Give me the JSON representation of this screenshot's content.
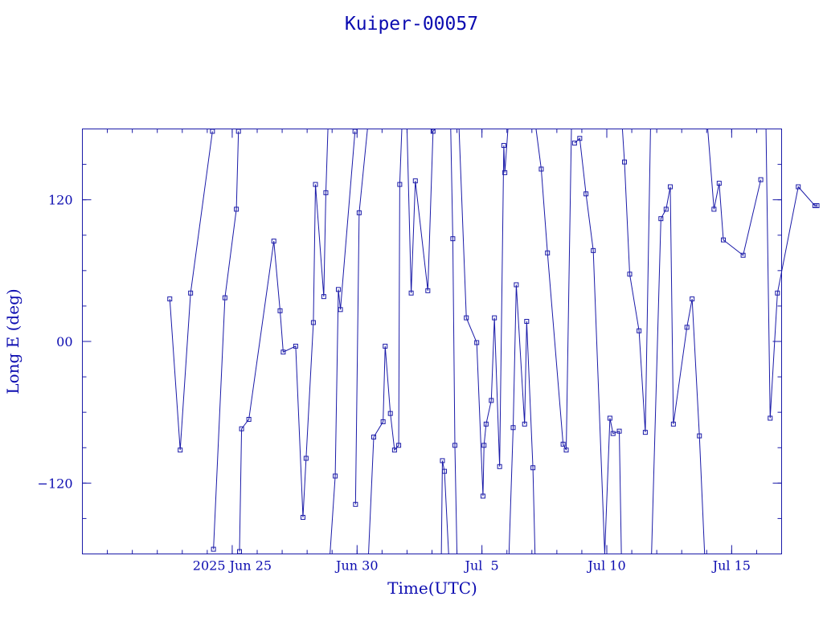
{
  "colors": {
    "ink": "#0b0bb0",
    "line": "#1a1aa8",
    "background": "#ffffff"
  },
  "chart_data": {
    "type": "line",
    "title": "Kuiper-00057",
    "xlabel": "Time(UTC)",
    "ylabel": "Long E (deg)",
    "x_is_date": true,
    "xlim": [
      "2025-06-19",
      "2025-07-17"
    ],
    "ylim": [
      -180,
      180
    ],
    "x_ticks": [
      {
        "date": "2025-06-25",
        "label": "2025 Jun 25"
      },
      {
        "date": "2025-06-30",
        "label": "Jun 30"
      },
      {
        "date": "2025-07-05",
        "label": "Jul  5"
      },
      {
        "date": "2025-07-10",
        "label": "Jul 10"
      },
      {
        "date": "2025-07-15",
        "label": "Jul 15"
      }
    ],
    "y_ticks": [
      {
        "value": -120,
        "label": "−120"
      },
      {
        "value": 0,
        "label": "00"
      },
      {
        "value": 120,
        "label": "120"
      }
    ],
    "grid": false,
    "marker": "open-square",
    "series": [
      {
        "points": [
          [
            "2025-06-22T12:00",
            36
          ],
          [
            "2025-06-22T22:00",
            -92
          ],
          [
            "2025-06-23T08:00",
            41
          ],
          [
            "2025-06-24T05:00",
            178
          ],
          [
            "2025-06-24T06:00",
            -176
          ],
          [
            "2025-06-24T17:00",
            37
          ],
          [
            "2025-06-25T04:00",
            112
          ],
          [
            "2025-06-25T06:00",
            178
          ],
          [
            "2025-06-25T07:00",
            -178
          ],
          [
            "2025-06-25T09:00",
            -74
          ],
          [
            "2025-06-25T16:00",
            -66
          ],
          [
            "2025-06-26T16:00",
            85
          ],
          [
            "2025-06-26T22:00",
            26
          ],
          [
            "2025-06-27T01:00",
            -9
          ],
          [
            "2025-06-27T13:00",
            -4
          ],
          [
            "2025-06-27T20:00",
            -149
          ],
          [
            "2025-06-27T23:00",
            -99
          ],
          [
            "2025-06-28T06:00",
            16
          ],
          [
            "2025-06-28T08:00",
            133
          ],
          [
            "2025-06-28T16:00",
            38
          ],
          [
            "2025-06-28T18:00",
            126
          ],
          [
            "2025-06-28T20:00",
            180
          ],
          [
            "2025-06-28T22:00",
            -180
          ],
          [
            "2025-06-29T03:00",
            -114
          ],
          [
            "2025-06-29T06:00",
            44
          ],
          [
            "2025-06-29T08:00",
            27
          ],
          [
            "2025-06-29T22:00",
            178
          ],
          [
            "2025-06-29T22:30",
            -138
          ],
          [
            "2025-06-30T02:00",
            109
          ],
          [
            "2025-06-30T10:00",
            180
          ],
          [
            "2025-06-30T11:00",
            -180
          ],
          [
            "2025-06-30T16:00",
            -81
          ],
          [
            "2025-07-01T01:00",
            -68
          ],
          [
            "2025-07-01T03:00",
            -4
          ],
          [
            "2025-07-01T08:00",
            -61
          ],
          [
            "2025-07-01T12:00",
            -92
          ],
          [
            "2025-07-01T16:00",
            -88
          ],
          [
            "2025-07-01T17:00",
            133
          ],
          [
            "2025-07-01T19:00",
            180
          ],
          [
            "2025-07-02T00:00",
            180
          ],
          [
            "2025-07-02T04:00",
            41
          ],
          [
            "2025-07-02T08:00",
            136
          ],
          [
            "2025-07-02T20:00",
            43
          ],
          [
            "2025-07-03T01:00",
            178
          ],
          [
            "2025-07-03T03:00",
            180
          ],
          [
            "2025-07-03T09:00",
            -180
          ],
          [
            "2025-07-03T10:00",
            -101
          ],
          [
            "2025-07-03T12:00",
            -110
          ],
          [
            "2025-07-03T16:00",
            -180
          ],
          [
            "2025-07-03T18:00",
            180
          ],
          [
            "2025-07-03T20:00",
            87
          ],
          [
            "2025-07-03T22:00",
            -88
          ],
          [
            "2025-07-04T00:00",
            -180
          ],
          [
            "2025-07-04T02:00",
            180
          ],
          [
            "2025-07-04T09:00",
            20
          ],
          [
            "2025-07-04T19:00",
            -1
          ],
          [
            "2025-07-05T01:00",
            -131
          ],
          [
            "2025-07-05T02:00",
            -88
          ],
          [
            "2025-07-05T04:00",
            -70
          ],
          [
            "2025-07-05T09:00",
            -50
          ],
          [
            "2025-07-05T12:00",
            20
          ],
          [
            "2025-07-05T17:00",
            -106
          ],
          [
            "2025-07-05T21:00",
            166
          ],
          [
            "2025-07-05T22:00",
            143
          ],
          [
            "2025-07-06T01:00",
            180
          ],
          [
            "2025-07-06T02:00",
            -180
          ],
          [
            "2025-07-06T06:00",
            -73
          ],
          [
            "2025-07-06T09:00",
            48
          ],
          [
            "2025-07-06T17:00",
            -70
          ],
          [
            "2025-07-06T19:00",
            17
          ],
          [
            "2025-07-07T01:00",
            -107
          ],
          [
            "2025-07-07T03:00",
            -180
          ],
          [
            "2025-07-07T04:00",
            180
          ],
          [
            "2025-07-07T09:00",
            146
          ],
          [
            "2025-07-07T15:00",
            75
          ],
          [
            "2025-07-08T06:00",
            -87
          ],
          [
            "2025-07-08T09:00",
            -92
          ],
          [
            "2025-07-08T14:00",
            180
          ],
          [
            "2025-07-08T15:00",
            -180
          ],
          [
            "2025-07-08T17:00",
            168
          ],
          [
            "2025-07-08T22:00",
            172
          ],
          [
            "2025-07-09T04:00",
            125
          ],
          [
            "2025-07-09T11:00",
            77
          ],
          [
            "2025-07-09T22:00",
            -180
          ],
          [
            "2025-07-10T03:00",
            -65
          ],
          [
            "2025-07-10T06:00",
            -78
          ],
          [
            "2025-07-10T12:00",
            -76
          ],
          [
            "2025-07-10T14:00",
            -180
          ],
          [
            "2025-07-10T15:00",
            180
          ],
          [
            "2025-07-10T17:00",
            152
          ],
          [
            "2025-07-10T22:00",
            57
          ],
          [
            "2025-07-11T07:00",
            9
          ],
          [
            "2025-07-11T13:00",
            -77
          ],
          [
            "2025-07-11T18:00",
            180
          ],
          [
            "2025-07-11T19:00",
            -180
          ],
          [
            "2025-07-12T04:00",
            104
          ],
          [
            "2025-07-12T09:00",
            112
          ],
          [
            "2025-07-12T13:00",
            131
          ],
          [
            "2025-07-12T16:00",
            -70
          ],
          [
            "2025-07-13T05:00",
            12
          ],
          [
            "2025-07-13T10:00",
            36
          ],
          [
            "2025-07-13T17:00",
            -80
          ],
          [
            "2025-07-13T22:00",
            -180
          ],
          [
            "2025-07-14T01:00",
            180
          ],
          [
            "2025-07-14T07:00",
            112
          ],
          [
            "2025-07-14T12:00",
            134
          ],
          [
            "2025-07-14T16:00",
            86
          ],
          [
            "2025-07-15T11:00",
            73
          ],
          [
            "2025-07-16T04:00",
            137
          ],
          [
            "2025-07-16T07:00",
            -180
          ],
          [
            "2025-07-16T09:00",
            180
          ],
          [
            "2025-07-16T13:00",
            -65
          ],
          [
            "2025-07-16T20:00",
            41
          ],
          [
            "2025-07-17T16:00",
            131
          ],
          [
            "2025-07-18T08:00",
            115
          ],
          [
            "2025-07-18T10:00",
            115
          ]
        ]
      }
    ]
  }
}
